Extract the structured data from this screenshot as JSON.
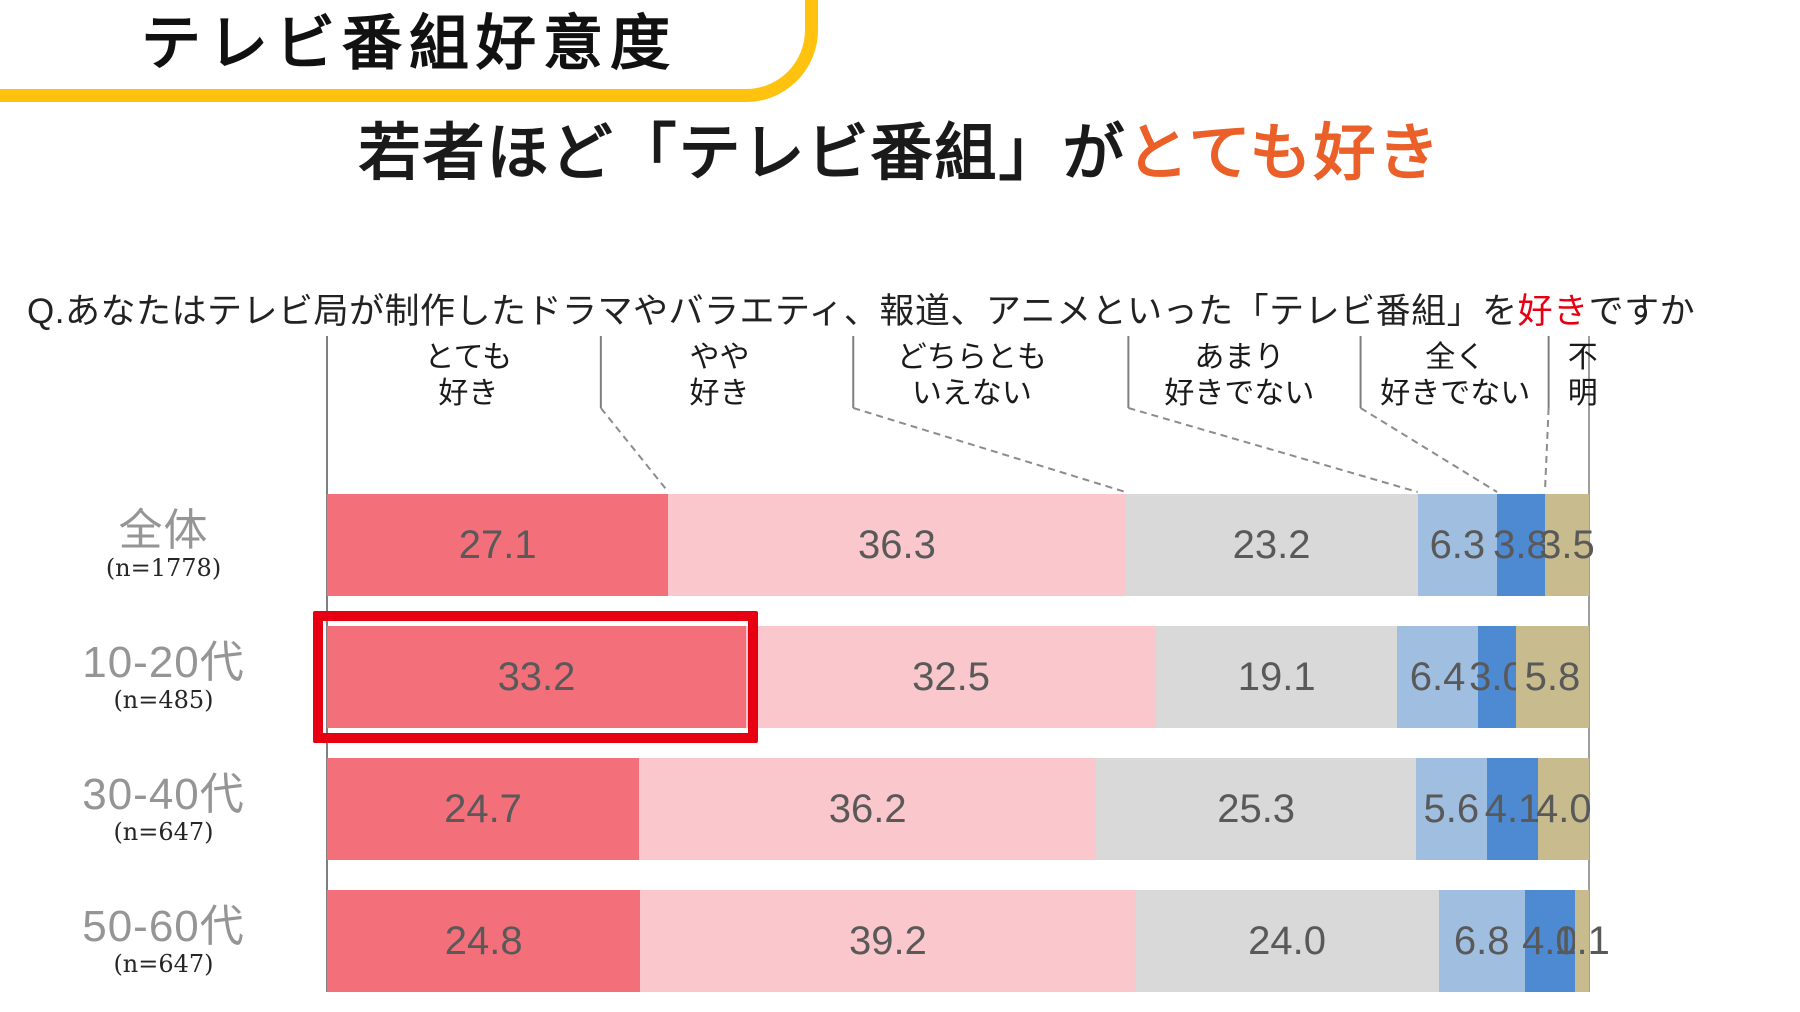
{
  "badge": {
    "title": "テレビ番組好意度"
  },
  "title": {
    "black": "若者ほど「テレビ番組」が",
    "accent": "とても好き"
  },
  "question": {
    "prefix": "Q.あなたはテレビ局が制作したドラマやバラエティ、報道、アニメといった「テレビ番組」を",
    "accent": "好き",
    "suffix": "ですか"
  },
  "colors": {
    "badge_border": "#FFC20E",
    "title_accent": "#EA6028",
    "question_accent": "#E60012",
    "highlight_box": "#E60012",
    "value_text": "#595959",
    "row_label_text": "#959595",
    "axis_line": "#7f7f7f"
  },
  "chart_data": {
    "type": "bar",
    "orientation": "horizontal-stacked",
    "unit": "%",
    "xlim": [
      0,
      100
    ],
    "grid": false,
    "legend_position": "top-callouts",
    "categories": [
      "とても好き",
      "やや好き",
      "どちらともいえない",
      "あまり好きでない",
      "全く好きでない",
      "不明"
    ],
    "category_lines": [
      [
        "とても",
        "好き"
      ],
      [
        "やや",
        "好き"
      ],
      [
        "どちらとも",
        "いえない"
      ],
      [
        "あまり",
        "好きでない"
      ],
      [
        "全く",
        "好きでない"
      ],
      [
        "不",
        "明"
      ]
    ],
    "segment_colors": [
      "#F3707B",
      "#FAC8CC",
      "#D9D9D9",
      "#9FBEE0",
      "#4D8AD2",
      "#C8BC8E"
    ],
    "rows": [
      {
        "label": "全体",
        "n": "(n=1778)",
        "values": [
          27.1,
          36.3,
          23.2,
          6.3,
          3.8,
          3.5
        ],
        "value_labels": [
          "27.1",
          "36.3",
          "23.2",
          "6.3",
          "3.8",
          "3.5"
        ]
      },
      {
        "label": "10-20代",
        "n": "(n=485)",
        "values": [
          33.2,
          32.5,
          19.1,
          6.4,
          3.0,
          5.8
        ],
        "value_labels": [
          "33.2",
          "32.5",
          "19.1",
          "6.4",
          "3.0",
          "5.8"
        ]
      },
      {
        "label": "30-40代",
        "n": "(n=647)",
        "values": [
          24.7,
          36.2,
          25.3,
          5.6,
          4.1,
          4.0
        ],
        "value_labels": [
          "24.7",
          "36.2",
          "25.3",
          "5.6",
          "4.1",
          "4.0"
        ]
      },
      {
        "label": "50-60代",
        "n": "(n=647)",
        "values": [
          24.8,
          39.2,
          24.0,
          6.8,
          4.0,
          1.1
        ],
        "value_labels": [
          "24.8",
          "39.2",
          "24.0",
          "6.8",
          "4.0",
          "1.1"
        ]
      }
    ],
    "highlight": {
      "row_index": 1,
      "segment_index": 0,
      "color": "#E60012"
    },
    "layout": {
      "label_center_pct": [
        11.2,
        31.1,
        51.1,
        72.3,
        89.4,
        99.5
      ],
      "separator_pct": [
        21.7,
        41.7,
        63.5,
        81.9,
        96.8
      ]
    }
  }
}
